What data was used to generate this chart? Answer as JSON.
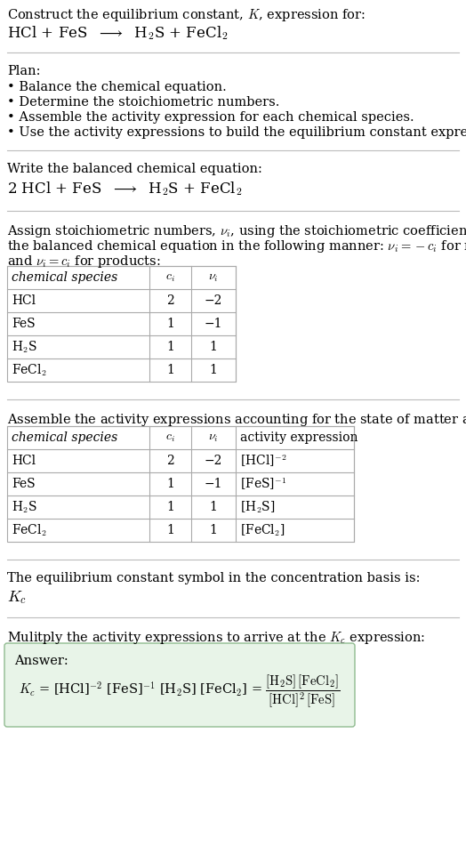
{
  "title_line1": "Construct the equilibrium constant, $K$, expression for:",
  "title_line2": "HCl + FeS  $\\longrightarrow$  H$_2$S + FeCl$_2$",
  "plan_header": "Plan:",
  "plan_items": [
    "\\textbullet  Balance the chemical equation.",
    "\\textbullet  Determine the stoichiometric numbers.",
    "\\textbullet  Assemble the activity expression for each chemical species.",
    "\\textbullet  Use the activity expressions to build the equilibrium constant expression."
  ],
  "balanced_header": "Write the balanced chemical equation:",
  "balanced_eq": "2 HCl + FeS  $\\longrightarrow$  H$_2$S + FeCl$_2$",
  "stoich_intro1": "Assign stoichiometric numbers, $\\nu_i$, using the stoichiometric coefficients, $c_i$, from",
  "stoich_intro2": "the balanced chemical equation in the following manner: $\\nu_i = -c_i$ for reactants",
  "stoich_intro3": "and $\\nu_i = c_i$ for products:",
  "table1_headers": [
    "chemical species",
    "$c_i$",
    "$\\nu_i$"
  ],
  "table1_rows": [
    [
      "HCl",
      "2",
      "−2"
    ],
    [
      "FeS",
      "1",
      "−1"
    ],
    [
      "H$_2$S",
      "1",
      "1"
    ],
    [
      "FeCl$_2$",
      "1",
      "1"
    ]
  ],
  "activity_intro": "Assemble the activity expressions accounting for the state of matter and $\\nu_i$:",
  "table2_headers": [
    "chemical species",
    "$c_i$",
    "$\\nu_i$",
    "activity expression"
  ],
  "table2_rows": [
    [
      "HCl",
      "2",
      "−2",
      "[HCl]$^{-2}$"
    ],
    [
      "FeS",
      "1",
      "−1",
      "[FeS]$^{-1}$"
    ],
    [
      "H$_2$S",
      "1",
      "1",
      "[H$_2$S]"
    ],
    [
      "FeCl$_2$",
      "1",
      "1",
      "[FeCl$_2$]"
    ]
  ],
  "Kc_intro": "The equilibrium constant symbol in the concentration basis is:",
  "Kc_symbol": "$K_c$",
  "multiply_intro": "Mulitply the activity expressions to arrive at the $K_c$ expression:",
  "answer_label": "Answer:",
  "answer_box_color": "#e8f4e8",
  "answer_box_border": "#90bb90",
  "bg_color": "#ffffff",
  "text_color": "#000000",
  "table_border_color": "#aaaaaa",
  "separator_color": "#bbbbbb"
}
